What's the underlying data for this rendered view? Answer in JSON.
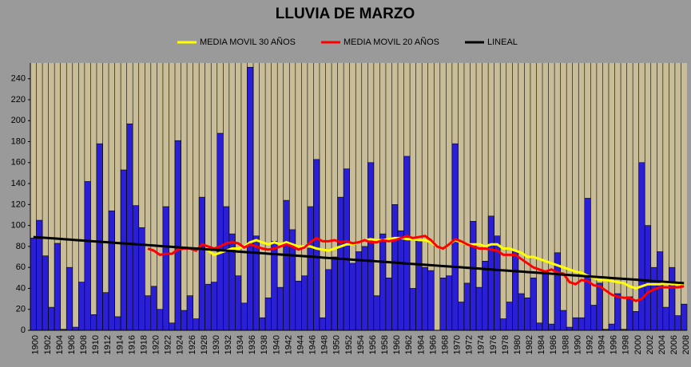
{
  "chart_data": {
    "type": "bar",
    "title": "LLUVIA DE MARZO",
    "categories": [
      "1900",
      null,
      "1902",
      null,
      "1904",
      null,
      "1906",
      null,
      "1908",
      null,
      "1910",
      null,
      "1912",
      null,
      "1914",
      null,
      "1916",
      null,
      "1918",
      null,
      "1920",
      null,
      "1922",
      null,
      "1924",
      null,
      "1926",
      null,
      "1928",
      null,
      "1930",
      null,
      "1932",
      null,
      "1934",
      null,
      "1936",
      null,
      "1938",
      null,
      "1940",
      null,
      "1942",
      null,
      "1944",
      null,
      "1946",
      null,
      "1948",
      null,
      "1950",
      null,
      "1952",
      null,
      "1954",
      null,
      "1956",
      null,
      "1958",
      null,
      "1960",
      null,
      "1962",
      null,
      "1964",
      null,
      "1966",
      null,
      "1968",
      null,
      "1970",
      null,
      "1972",
      null,
      "1974",
      null,
      "1976",
      null,
      "1978",
      null,
      "1980",
      null,
      "1982",
      null,
      "1984",
      null,
      "1986",
      null,
      "1988",
      null,
      "1990",
      null,
      "1992",
      null,
      "1994",
      null,
      "1996",
      null,
      "1998",
      null,
      "2000",
      null,
      "2002",
      null,
      "2004",
      null,
      "2006",
      null,
      "2008"
    ],
    "values": [
      88,
      105,
      71,
      22,
      83,
      1,
      60,
      3,
      46,
      142,
      15,
      178,
      36,
      114,
      13,
      153,
      197,
      119,
      98,
      33,
      42,
      20,
      118,
      7,
      181,
      19,
      33,
      11,
      127,
      44,
      46,
      188,
      118,
      92,
      52,
      26,
      251,
      90,
      12,
      31,
      85,
      41,
      124,
      96,
      47,
      52,
      118,
      163,
      12,
      58,
      70,
      127,
      154,
      64,
      75,
      80,
      160,
      33,
      92,
      50,
      120,
      95,
      166,
      40,
      85,
      60,
      57,
      0,
      50,
      52,
      178,
      27,
      45,
      104,
      41,
      66,
      109,
      90,
      11,
      27,
      75,
      35,
      31,
      50,
      7,
      55,
      6,
      74,
      19,
      3,
      12,
      12,
      126,
      24,
      45,
      1,
      6,
      35,
      1,
      32,
      18,
      160,
      100,
      60,
      75,
      22,
      60,
      14,
      25
    ],
    "color": "#2b1fd6",
    "series": [
      {
        "name": "MEDIA MOVIL 30 AÑOS",
        "color": "#ffff00",
        "values": [
          null,
          null,
          null,
          null,
          null,
          null,
          null,
          null,
          null,
          null,
          null,
          null,
          null,
          null,
          null,
          null,
          null,
          null,
          null,
          null,
          null,
          null,
          null,
          null,
          null,
          null,
          null,
          null,
          null,
          76,
          72,
          74,
          76,
          78,
          78,
          80,
          84,
          86,
          84,
          82,
          84,
          82,
          84,
          82,
          80,
          80,
          80,
          78,
          77,
          76,
          78,
          80,
          82,
          82,
          84,
          86,
          87,
          86,
          86,
          87,
          88,
          88,
          87,
          87,
          86,
          86,
          84,
          80,
          78,
          82,
          86,
          84,
          82,
          82,
          82,
          80,
          82,
          82,
          78,
          78,
          76,
          74,
          70,
          70,
          68,
          66,
          64,
          62,
          60,
          58,
          56,
          55,
          52,
          50,
          48,
          48,
          47,
          46,
          45,
          42,
          40,
          42,
          44,
          44,
          44,
          45,
          44,
          44,
          45
        ]
      },
      {
        "name": "MEDIA MOVIL 20 AÑOS",
        "color": "#ff0000",
        "values": [
          null,
          null,
          null,
          null,
          null,
          null,
          null,
          null,
          null,
          null,
          null,
          null,
          null,
          null,
          null,
          null,
          null,
          null,
          null,
          78,
          76,
          72,
          73,
          73,
          77,
          78,
          78,
          76,
          82,
          80,
          78,
          80,
          83,
          84,
          83,
          79,
          82,
          80,
          78,
          77,
          78,
          80,
          82,
          80,
          77,
          79,
          84,
          88,
          85,
          85,
          86,
          84,
          85,
          83,
          84,
          86,
          84,
          84,
          86,
          85,
          86,
          88,
          90,
          88,
          89,
          90,
          86,
          80,
          78,
          82,
          87,
          85,
          82,
          80,
          78,
          78,
          77,
          76,
          72,
          72,
          72,
          68,
          64,
          60,
          58,
          56,
          58,
          55,
          54,
          46,
          44,
          48,
          47,
          43,
          42,
          38,
          34,
          32,
          31,
          31,
          28,
          30,
          36,
          39,
          41,
          41,
          41,
          41,
          42
        ]
      },
      {
        "name": "LINEAL",
        "color": "#000000",
        "values": [
          89.0,
          88.6,
          88.2,
          87.8,
          87.4,
          87.0,
          86.6,
          86.1,
          85.7,
          85.3,
          84.9,
          84.5,
          84.1,
          83.7,
          83.3,
          82.9,
          82.5,
          82.1,
          81.7,
          81.3,
          80.9,
          80.4,
          80.0,
          79.6,
          79.2,
          78.8,
          78.4,
          78.0,
          77.6,
          77.2,
          76.8,
          76.4,
          76.0,
          75.6,
          75.1,
          74.7,
          74.3,
          73.9,
          73.5,
          73.1,
          72.7,
          72.3,
          71.9,
          71.5,
          71.1,
          70.7,
          70.3,
          69.9,
          69.4,
          69.0,
          68.6,
          68.2,
          67.8,
          67.4,
          67.0,
          66.6,
          66.2,
          65.8,
          65.4,
          65.0,
          64.6,
          64.1,
          63.7,
          63.3,
          62.9,
          62.5,
          62.1,
          61.7,
          61.3,
          60.9,
          60.5,
          60.1,
          59.7,
          59.3,
          58.9,
          58.4,
          58.0,
          57.6,
          57.2,
          56.8,
          56.4,
          56.0,
          55.6,
          55.2,
          54.8,
          54.4,
          54.0,
          53.6,
          53.1,
          52.7,
          52.3,
          51.9,
          51.5,
          51.1,
          50.7,
          50.3,
          49.9,
          49.5,
          49.1,
          48.7,
          48.3,
          47.9,
          47.4,
          47.0,
          46.6,
          46.2,
          45.8,
          45.4,
          45.0
        ]
      }
    ],
    "ylim": [
      0,
      255
    ],
    "yticks": [
      0,
      20,
      40,
      60,
      80,
      100,
      120,
      140,
      160,
      180,
      200,
      220,
      240
    ],
    "vgrid": true,
    "legend": "top"
  }
}
